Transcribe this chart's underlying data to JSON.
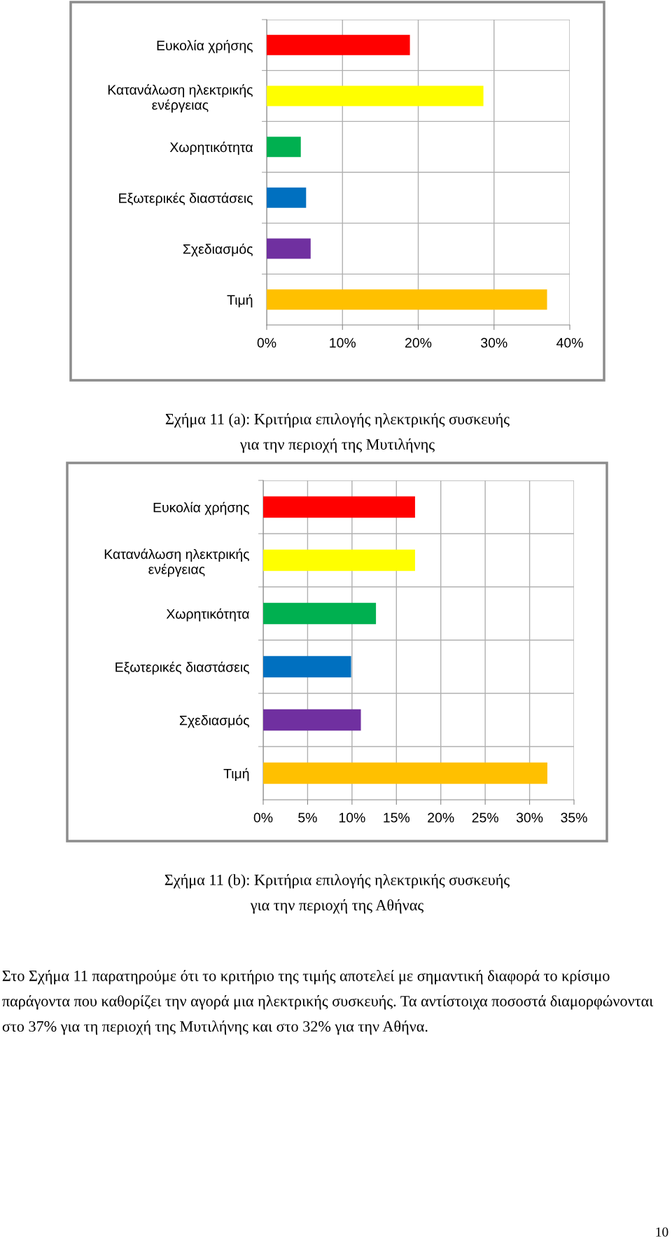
{
  "chart_data": [
    {
      "type": "bar",
      "orientation": "horizontal",
      "title": "Σχήμα 11 (a): Κριτήρια επιλογής ηλεκτρικής συσκευής\nγια την περιοχή της Μυτιλήνης",
      "categories": [
        "Ευκολία χρήσης",
        "Κατανάλωση ηλεκτρικής\nενέργειας",
        "Χωρητικότητα",
        "Εξωτερικές διαστάσεις",
        "Σχεδιασμός",
        "Τιμή"
      ],
      "values": [
        18.9,
        28.6,
        4.5,
        5.2,
        5.8,
        37
      ],
      "colors": [
        "#ff0000",
        "#ffff00",
        "#00b050",
        "#0070c0",
        "#7030a0",
        "#ffc000"
      ],
      "xlim": [
        0,
        40
      ],
      "xticks": [
        {
          "value": 0,
          "label": "0%"
        },
        {
          "value": 10,
          "label": "10%"
        },
        {
          "value": 20,
          "label": "20%"
        },
        {
          "value": 30,
          "label": "30%"
        },
        {
          "value": 40,
          "label": "40%"
        }
      ],
      "grid": true
    },
    {
      "type": "bar",
      "orientation": "horizontal",
      "title": "Σχήμα 11 (b): Κριτήρια επιλογής ηλεκτρικής συσκευής\nγια την περιοχή της Αθήνας",
      "categories": [
        "Ευκολία χρήσης",
        "Κατανάλωση ηλεκτρικής\nενέργειας",
        "Χωρητικότητα",
        "Εξωτερικές διαστάσεις",
        "Σχεδιασμός",
        "Τιμή"
      ],
      "values": [
        17.1,
        17.1,
        12.7,
        9.9,
        11.0,
        32
      ],
      "colors": [
        "#ff0000",
        "#ffff00",
        "#00b050",
        "#0070c0",
        "#7030a0",
        "#ffc000"
      ],
      "xlim": [
        0,
        35
      ],
      "xticks": [
        {
          "value": 0,
          "label": "0%"
        },
        {
          "value": 5,
          "label": "5%"
        },
        {
          "value": 10,
          "label": "10%"
        },
        {
          "value": 15,
          "label": "15%"
        },
        {
          "value": 20,
          "label": "20%"
        },
        {
          "value": 25,
          "label": "25%"
        },
        {
          "value": 30,
          "label": "30%"
        },
        {
          "value": 35,
          "label": "35%"
        }
      ],
      "grid": true,
      "annotations": [
        "Στο Σχήμα 11 παρατηρούμε ότι το κριτήριο της τιμής αποτελεί με σημαντική διαφορά το κρίσιμο παράγοντα που καθορίζει την αγορά μια ηλεκτρικής συσκευής. Τα αντίστοιχα ποσοστά διαμορφώνονται στο 37% για τη περιοχή της Μυτιλήνης και στο 32% για την Αθήνα.",
        "10"
      ]
    }
  ]
}
